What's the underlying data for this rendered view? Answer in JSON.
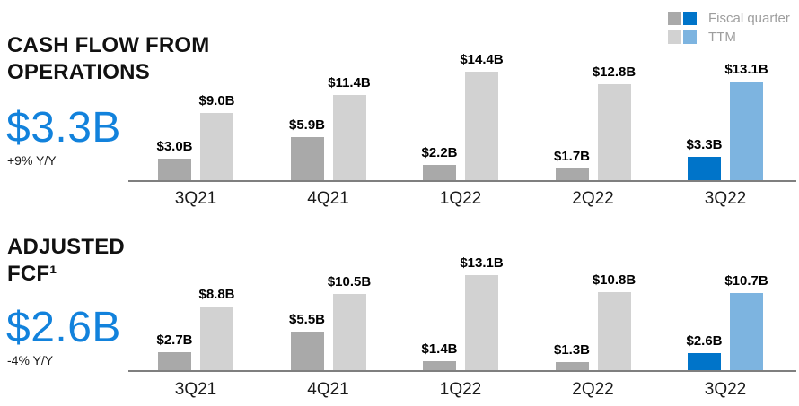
{
  "legend": {
    "items": [
      {
        "label": "Fiscal quarter",
        "swatch_normal": "#a9a9a9",
        "swatch_highlight": "#0074c9"
      },
      {
        "label": "TTM",
        "swatch_normal": "#d2d2d2",
        "swatch_highlight": "#7db4e0"
      }
    ]
  },
  "colors": {
    "fiscal_normal": "#a9a9a9",
    "fiscal_highlight": "#0074c9",
    "ttm_normal": "#d2d2d2",
    "ttm_highlight": "#7db4e0",
    "accent_text": "#1282dc",
    "axis": "#7f7f7f"
  },
  "sections": [
    {
      "title_lines": [
        "CASH FLOW FROM",
        "OPERATIONS"
      ],
      "big_value": "$3.3B",
      "yoy": "+9% Y/Y"
    },
    {
      "title_lines": [
        "ADJUSTED",
        "FCF¹"
      ],
      "big_value": "$2.6B",
      "yoy": "-4% Y/Y"
    }
  ],
  "chart_data": [
    {
      "type": "bar",
      "title": "Cash flow from operations",
      "categories": [
        "3Q21",
        "4Q21",
        "1Q22",
        "2Q22",
        "3Q22"
      ],
      "series": [
        {
          "name": "Fiscal quarter",
          "values": [
            3.0,
            5.9,
            2.2,
            1.7,
            3.3
          ],
          "labels": [
            "$3.0B",
            "$5.9B",
            "$2.2B",
            "$1.7B",
            "$3.3B"
          ]
        },
        {
          "name": "TTM",
          "values": [
            9.0,
            11.4,
            14.4,
            12.8,
            13.1
          ],
          "labels": [
            "$9.0B",
            "$11.4B",
            "$14.4B",
            "$12.8B",
            "$13.1B"
          ]
        }
      ],
      "highlight_category": "3Q22",
      "ylim": [
        0,
        14.4
      ],
      "grid": false,
      "legend_position": "top-right",
      "data_labels": true
    },
    {
      "type": "bar",
      "title": "Adjusted FCF",
      "categories": [
        "3Q21",
        "4Q21",
        "1Q22",
        "2Q22",
        "3Q22"
      ],
      "series": [
        {
          "name": "Fiscal quarter",
          "values": [
            2.7,
            5.5,
            1.4,
            1.3,
            2.6
          ],
          "labels": [
            "$2.7B",
            "$5.5B",
            "$1.4B",
            "$1.3B",
            "$2.6B"
          ]
        },
        {
          "name": "TTM",
          "values": [
            8.8,
            10.5,
            13.1,
            10.8,
            10.7
          ],
          "labels": [
            "$8.8B",
            "$10.5B",
            "$13.1B",
            "$10.8B",
            "$10.7B"
          ]
        }
      ],
      "highlight_category": "3Q22",
      "ylim": [
        0,
        13.1
      ],
      "grid": false,
      "legend_position": "top-right",
      "data_labels": true
    }
  ]
}
